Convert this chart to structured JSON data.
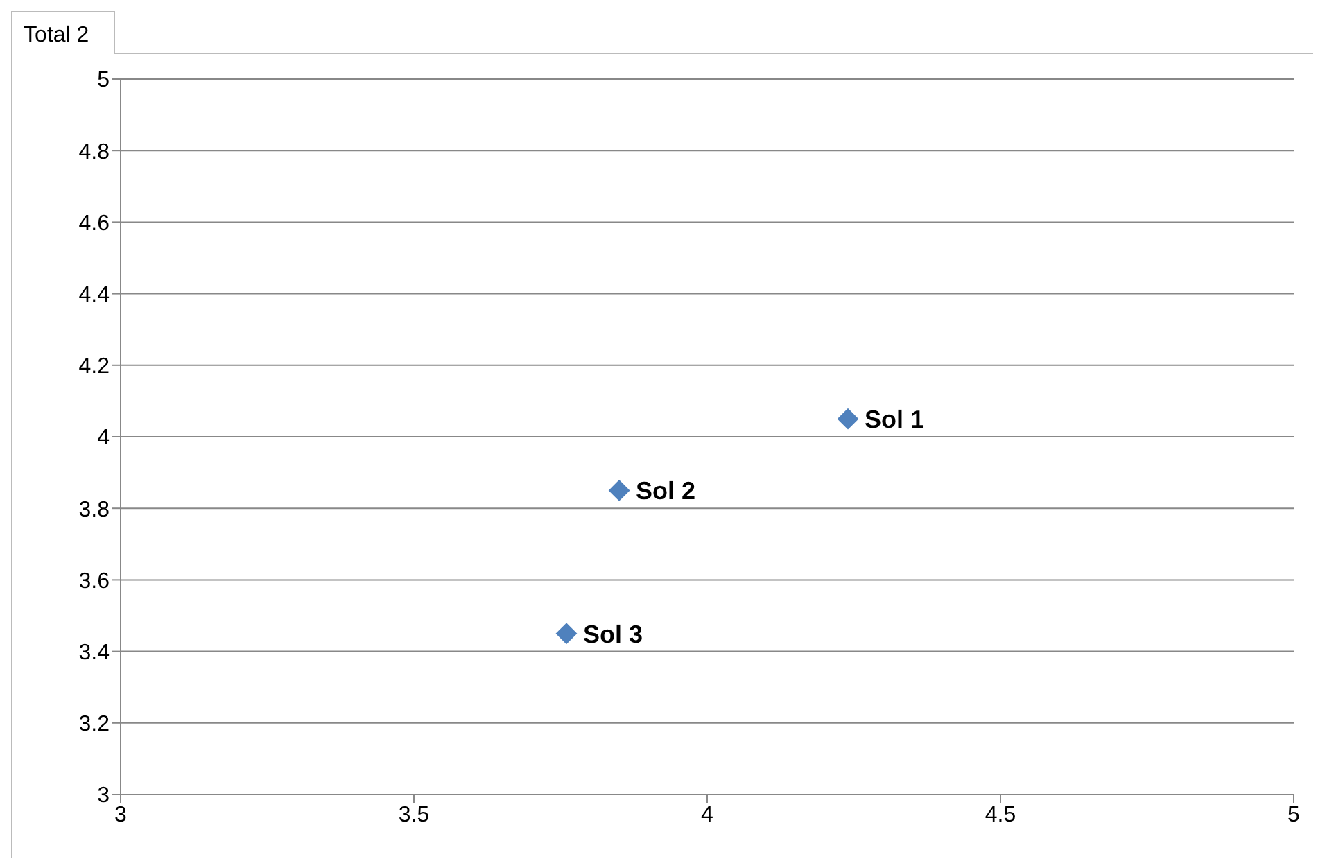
{
  "chart_data": {
    "type": "scatter",
    "title": "Total 2",
    "series": [
      {
        "color": "#4f81bd",
        "x": [
          4.24,
          3.85,
          3.76
        ],
        "values": [
          4.05,
          3.85,
          3.45
        ]
      }
    ],
    "annotations": [
      {
        "text": "Sol 1",
        "x": 4.24,
        "y": 4.05
      },
      {
        "text": "Sol 2",
        "x": 3.85,
        "y": 3.85
      },
      {
        "text": "Sol 3",
        "x": 3.76,
        "y": 3.45
      }
    ],
    "xlim": [
      3,
      5
    ],
    "xticks": [
      3,
      3.5,
      4,
      4.5,
      5
    ],
    "ylim": [
      3,
      5
    ],
    "yticks": [
      3,
      3.2,
      3.4,
      3.6,
      3.8,
      4,
      4.2,
      4.4,
      4.6,
      4.8,
      5
    ],
    "grid": "y",
    "marker": "diamond",
    "legend": false
  }
}
